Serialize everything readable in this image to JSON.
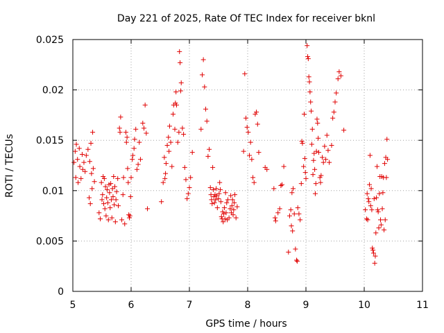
{
  "chart_data": {
    "type": "scatter",
    "title": "Day 221 of 2025, Rate Of TEC Index for receiver bknl",
    "xlabel": "GPS time / hours",
    "ylabel": "ROTI / TECUs",
    "xlim": [
      5,
      11
    ],
    "ylim": [
      0,
      0.025
    ],
    "xticks": [
      "5",
      "6",
      "7",
      "8",
      "9",
      "10",
      "11"
    ],
    "yticks": [
      "0",
      "0.005",
      "0.01",
      "0.015",
      "0.02",
      "0.025"
    ],
    "grid": true,
    "marker": "+",
    "series": [
      {
        "name": "ROTI",
        "color": "#e00000",
        "points": [
          [
            5.02,
            0.0128
          ],
          [
            5.04,
            0.0139
          ],
          [
            5.05,
            0.0113
          ],
          [
            5.06,
            0.0146
          ],
          [
            5.08,
            0.0131
          ],
          [
            5.09,
            0.0108
          ],
          [
            5.11,
            0.0142
          ],
          [
            5.12,
            0.0124
          ],
          [
            5.14,
            0.0112
          ],
          [
            5.16,
            0.0136
          ],
          [
            5.17,
            0.0121
          ],
          [
            5.19,
            0.0128
          ],
          [
            5.21,
            0.0119
          ],
          [
            5.23,
            0.0135
          ],
          [
            5.26,
            0.0141
          ],
          [
            5.28,
            0.0093
          ],
          [
            5.29,
            0.0129
          ],
          [
            5.3,
            0.0087
          ],
          [
            5.31,
            0.0147
          ],
          [
            5.32,
            0.0117
          ],
          [
            5.33,
            0.0102
          ],
          [
            5.34,
            0.0158
          ],
          [
            5.35,
            0.0122
          ],
          [
            5.37,
            0.0109
          ],
          [
            5.45,
            0.0078
          ],
          [
            5.47,
            0.0072
          ],
          [
            5.49,
            0.0108
          ],
          [
            5.5,
            0.0091
          ],
          [
            5.51,
            0.0096
          ],
          [
            5.52,
            0.0114
          ],
          [
            5.53,
            0.0087
          ],
          [
            5.54,
            0.0112
          ],
          [
            5.55,
            0.0082
          ],
          [
            5.56,
            0.0104
          ],
          [
            5.57,
            0.0075
          ],
          [
            5.58,
            0.0093
          ],
          [
            5.59,
            0.0101
          ],
          [
            5.6,
            0.0088
          ],
          [
            5.61,
            0.0071
          ],
          [
            5.62,
            0.0106
          ],
          [
            5.63,
            0.0098
          ],
          [
            5.64,
            0.0083
          ],
          [
            5.65,
            0.0107
          ],
          [
            5.66,
            0.0091
          ],
          [
            5.67,
            0.0073
          ],
          [
            5.68,
            0.0102
          ],
          [
            5.69,
            0.0094
          ],
          [
            5.7,
            0.0114
          ],
          [
            5.71,
            0.0086
          ],
          [
            5.72,
            0.0104
          ],
          [
            5.73,
            0.0069
          ],
          [
            5.74,
            0.0091
          ],
          [
            5.75,
            0.0099
          ],
          [
            5.77,
            0.0112
          ],
          [
            5.78,
            0.0085
          ],
          [
            5.8,
            0.0162
          ],
          [
            5.81,
            0.0158
          ],
          [
            5.82,
            0.0173
          ],
          [
            5.84,
            0.0071
          ],
          [
            5.86,
            0.0096
          ],
          [
            5.87,
            0.0113
          ],
          [
            5.89,
            0.0067
          ],
          [
            5.91,
            0.0158
          ],
          [
            5.92,
            0.0148
          ],
          [
            5.93,
            0.0153
          ],
          [
            5.94,
            0.0122
          ],
          [
            5.95,
            0.0108
          ],
          [
            5.96,
            0.0076
          ],
          [
            5.97,
            0.0073
          ],
          [
            5.98,
            0.0075
          ],
          [
            5.99,
            0.0094
          ],
          [
            6.0,
            0.0113
          ],
          [
            6.02,
            0.0131
          ],
          [
            6.03,
            0.0135
          ],
          [
            6.05,
            0.0142
          ],
          [
            6.06,
            0.0151
          ],
          [
            6.08,
            0.0161
          ],
          [
            6.1,
            0.0121
          ],
          [
            6.12,
            0.0126
          ],
          [
            6.14,
            0.0148
          ],
          [
            6.16,
            0.0131
          ],
          [
            6.2,
            0.0167
          ],
          [
            6.22,
            0.0162
          ],
          [
            6.24,
            0.0185
          ],
          [
            6.26,
            0.0157
          ],
          [
            6.28,
            0.0082
          ],
          [
            6.52,
            0.0089
          ],
          [
            6.55,
            0.0108
          ],
          [
            6.57,
            0.0133
          ],
          [
            6.58,
            0.0112
          ],
          [
            6.59,
            0.0117
          ],
          [
            6.6,
            0.0127
          ],
          [
            6.62,
            0.0145
          ],
          [
            6.64,
            0.0153
          ],
          [
            6.65,
            0.0139
          ],
          [
            6.66,
            0.0164
          ],
          [
            6.68,
            0.0148
          ],
          [
            6.7,
            0.0124
          ],
          [
            6.72,
            0.0176
          ],
          [
            6.73,
            0.0185
          ],
          [
            6.75,
            0.0161
          ],
          [
            6.76,
            0.0187
          ],
          [
            6.77,
            0.0198
          ],
          [
            6.78,
            0.0185
          ],
          [
            6.8,
            0.0148
          ],
          [
            6.82,
            0.0158
          ],
          [
            6.83,
            0.0238
          ],
          [
            6.84,
            0.0227
          ],
          [
            6.85,
            0.0199
          ],
          [
            6.86,
            0.0207
          ],
          [
            6.88,
            0.0162
          ],
          [
            6.9,
            0.0156
          ],
          [
            6.92,
            0.0123
          ],
          [
            6.94,
            0.0111
          ],
          [
            6.96,
            0.0092
          ],
          [
            6.98,
            0.0097
          ],
          [
            7.0,
            0.0103
          ],
          [
            7.02,
            0.0113
          ],
          [
            7.05,
            0.0138
          ],
          [
            7.2,
            0.0161
          ],
          [
            7.22,
            0.0215
          ],
          [
            7.24,
            0.023
          ],
          [
            7.26,
            0.0203
          ],
          [
            7.28,
            0.0181
          ],
          [
            7.3,
            0.0169
          ],
          [
            7.32,
            0.0134
          ],
          [
            7.34,
            0.0141
          ],
          [
            7.36,
            0.0103
          ],
          [
            7.37,
            0.0096
          ],
          [
            7.38,
            0.0091
          ],
          [
            7.39,
            0.0087
          ],
          [
            7.4,
            0.0123
          ],
          [
            7.41,
            0.0101
          ],
          [
            7.42,
            0.0094
          ],
          [
            7.43,
            0.0088
          ],
          [
            7.44,
            0.0096
          ],
          [
            7.45,
            0.0091
          ],
          [
            7.46,
            0.0102
          ],
          [
            7.47,
            0.0095
          ],
          [
            7.48,
            0.0083
          ],
          [
            7.5,
            0.0092
          ],
          [
            7.51,
            0.0097
          ],
          [
            7.52,
            0.0108
          ],
          [
            7.53,
            0.0101
          ],
          [
            7.54,
            0.0089
          ],
          [
            7.55,
            0.0074
          ],
          [
            7.56,
            0.0072
          ],
          [
            7.57,
            0.0079
          ],
          [
            7.58,
            0.0069
          ],
          [
            7.59,
            0.0077
          ],
          [
            7.6,
            0.0083
          ],
          [
            7.61,
            0.0072
          ],
          [
            7.62,
            0.0098
          ],
          [
            7.63,
            0.0078
          ],
          [
            7.64,
            0.0088
          ],
          [
            7.65,
            0.0071
          ],
          [
            7.66,
            0.0091
          ],
          [
            7.68,
            0.0073
          ],
          [
            7.7,
            0.0082
          ],
          [
            7.71,
            0.0095
          ],
          [
            7.72,
            0.0078
          ],
          [
            7.73,
            0.0085
          ],
          [
            7.74,
            0.0091
          ],
          [
            7.75,
            0.0076
          ],
          [
            7.76,
            0.0081
          ],
          [
            7.77,
            0.0088
          ],
          [
            7.78,
            0.0096
          ],
          [
            7.8,
            0.0073
          ],
          [
            7.82,
            0.0084
          ],
          [
            7.93,
            0.0139
          ],
          [
            7.95,
            0.0216
          ],
          [
            7.97,
            0.0172
          ],
          [
            7.99,
            0.0163
          ],
          [
            8.01,
            0.0158
          ],
          [
            8.03,
            0.0135
          ],
          [
            8.05,
            0.0148
          ],
          [
            8.07,
            0.0131
          ],
          [
            8.09,
            0.0113
          ],
          [
            8.11,
            0.0108
          ],
          [
            8.13,
            0.0176
          ],
          [
            8.15,
            0.0178
          ],
          [
            8.17,
            0.0166
          ],
          [
            8.19,
            0.0138
          ],
          [
            8.3,
            0.0123
          ],
          [
            8.33,
            0.0121
          ],
          [
            8.45,
            0.0102
          ],
          [
            8.47,
            0.0073
          ],
          [
            8.48,
            0.007
          ],
          [
            8.52,
            0.0078
          ],
          [
            8.55,
            0.0082
          ],
          [
            8.57,
            0.0105
          ],
          [
            8.59,
            0.0106
          ],
          [
            8.62,
            0.0124
          ],
          [
            8.7,
            0.0039
          ],
          [
            8.72,
            0.0075
          ],
          [
            8.74,
            0.0081
          ],
          [
            8.75,
            0.0065
          ],
          [
            8.76,
            0.0098
          ],
          [
            8.77,
            0.006
          ],
          [
            8.78,
            0.0102
          ],
          [
            8.8,
            0.0077
          ],
          [
            8.82,
            0.0042
          ],
          [
            8.84,
            0.0031
          ],
          [
            8.85,
            0.003
          ],
          [
            8.86,
            0.0083
          ],
          [
            8.88,
            0.0077
          ],
          [
            8.9,
            0.0071
          ],
          [
            8.92,
            0.0107
          ],
          [
            8.93,
            0.0149
          ],
          [
            8.94,
            0.0147
          ],
          [
            8.96,
            0.0124
          ],
          [
            8.97,
            0.0176
          ],
          [
            8.98,
            0.0132
          ],
          [
            8.99,
            0.0118
          ],
          [
            9.0,
            0.0112
          ],
          [
            9.02,
            0.0244
          ],
          [
            9.03,
            0.0233
          ],
          [
            9.04,
            0.0231
          ],
          [
            9.05,
            0.0213
          ],
          [
            9.06,
            0.0208
          ],
          [
            9.07,
            0.0198
          ],
          [
            9.08,
            0.0188
          ],
          [
            9.09,
            0.0179
          ],
          [
            9.1,
            0.0146
          ],
          [
            9.11,
            0.0161
          ],
          [
            9.12,
            0.0116
          ],
          [
            9.13,
            0.013
          ],
          [
            9.14,
            0.0137
          ],
          [
            9.15,
            0.0121
          ],
          [
            9.16,
            0.0097
          ],
          [
            9.17,
            0.0107
          ],
          [
            9.18,
            0.0139
          ],
          [
            9.19,
            0.0171
          ],
          [
            9.2,
            0.0167
          ],
          [
            9.21,
            0.0152
          ],
          [
            9.22,
            0.0138
          ],
          [
            9.24,
            0.0113
          ],
          [
            9.25,
            0.0108
          ],
          [
            9.26,
            0.0115
          ],
          [
            9.28,
            0.0133
          ],
          [
            9.3,
            0.0128
          ],
          [
            9.32,
            0.0144
          ],
          [
            9.34,
            0.0131
          ],
          [
            9.36,
            0.0155
          ],
          [
            9.38,
            0.014
          ],
          [
            9.4,
            0.0128
          ],
          [
            9.44,
            0.0145
          ],
          [
            9.46,
            0.0172
          ],
          [
            9.48,
            0.0178
          ],
          [
            9.5,
            0.0188
          ],
          [
            9.52,
            0.0197
          ],
          [
            9.55,
            0.0211
          ],
          [
            9.57,
            0.0218
          ],
          [
            9.6,
            0.0214
          ],
          [
            9.65,
            0.016
          ],
          [
            10.02,
            0.0081
          ],
          [
            10.04,
            0.0072
          ],
          [
            10.05,
            0.0097
          ],
          [
            10.06,
            0.0071
          ],
          [
            10.07,
            0.0092
          ],
          [
            10.08,
            0.0089
          ],
          [
            10.09,
            0.0106
          ],
          [
            10.1,
            0.0135
          ],
          [
            10.11,
            0.0085
          ],
          [
            10.12,
            0.0102
          ],
          [
            10.13,
            0.0081
          ],
          [
            10.14,
            0.0043
          ],
          [
            10.15,
            0.0041
          ],
          [
            10.16,
            0.0038
          ],
          [
            10.17,
            0.0092
          ],
          [
            10.18,
            0.0028
          ],
          [
            10.19,
            0.0035
          ],
          [
            10.2,
            0.0058
          ],
          [
            10.21,
            0.0093
          ],
          [
            10.22,
            0.0124
          ],
          [
            10.23,
            0.0081
          ],
          [
            10.24,
            0.0079
          ],
          [
            10.25,
            0.0063
          ],
          [
            10.26,
            0.0097
          ],
          [
            10.27,
            0.0114
          ],
          [
            10.28,
            0.0071
          ],
          [
            10.29,
            0.0066
          ],
          [
            10.3,
            0.0114
          ],
          [
            10.31,
            0.0082
          ],
          [
            10.32,
            0.0098
          ],
          [
            10.33,
            0.0113
          ],
          [
            10.34,
            0.0061
          ],
          [
            10.35,
            0.0127
          ],
          [
            10.36,
            0.0071
          ],
          [
            10.37,
            0.0133
          ],
          [
            10.38,
            0.0113
          ],
          [
            10.39,
            0.0151
          ],
          [
            10.4,
            0.0131
          ]
        ]
      }
    ]
  }
}
